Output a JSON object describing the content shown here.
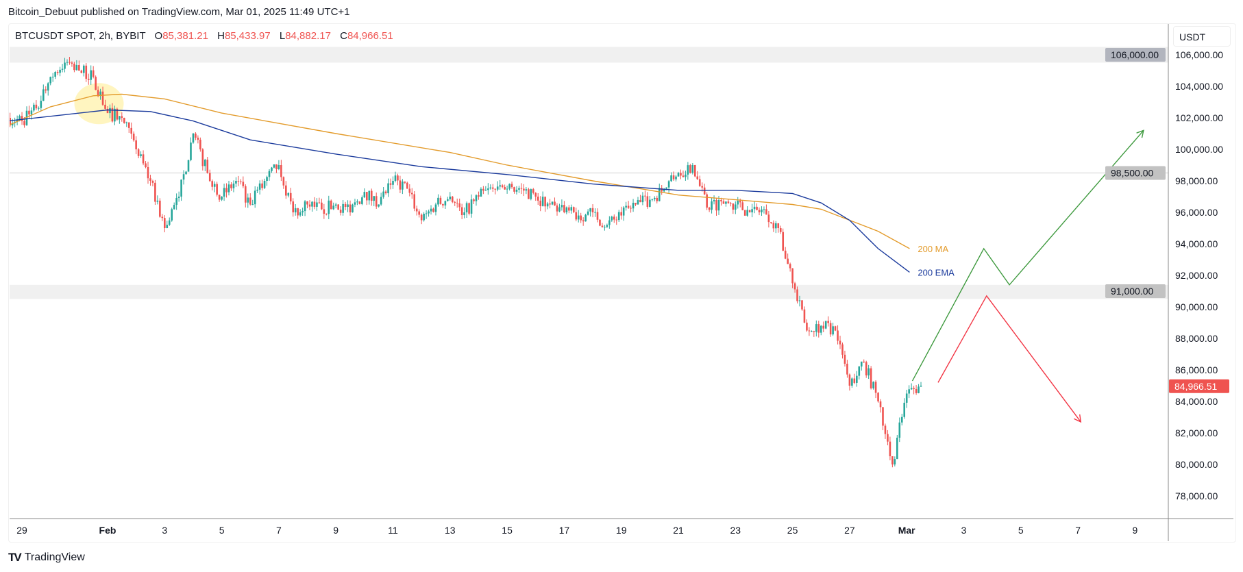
{
  "header": {
    "published": "Bitcoin_Debuut published on TradingView.com, Mar 01, 2025 11:49 UTC+1",
    "symbol": "BTCUSDT SPOT, 2h, BYBIT",
    "o_label": "O",
    "o": "85,381.21",
    "h_label": "H",
    "h": "85,433.97",
    "l_label": "L",
    "l": "84,882.17",
    "c_label": "C",
    "c": "84,966.51",
    "currency": "USDT"
  },
  "footer": {
    "logo_text": "TradingView",
    "logo_mark": "TV"
  },
  "colors": {
    "up": "#26a69a",
    "down": "#ef5350",
    "ma": "#e39b2b",
    "ema": "#1a3a9c",
    "bull_path": "#3f9a3f",
    "bear_path": "#f23645",
    "highlight": "#fff3b0",
    "zone": "#f0f0f0"
  },
  "chart_data": {
    "type": "candlestick",
    "title": "BTCUSDT SPOT, 2h, BYBIT",
    "time_unit": "days offset from Feb 1 2025",
    "ylim": [
      76500,
      107500
    ],
    "xlim": [
      -3.45,
      37.2
    ],
    "y_ticks": [
      78000,
      80000,
      82000,
      84000,
      86000,
      88000,
      90000,
      92000,
      94000,
      96000,
      98000,
      100000,
      102000,
      104000,
      106000
    ],
    "y_tick_labels": [
      "78,000.00",
      "80,000.00",
      "82,000.00",
      "84,000.00",
      "86,000.00",
      "88,000.00",
      "90,000.00",
      "92,000.00",
      "94,000.00",
      "96,000.00",
      "98,000.00",
      "100,000.00",
      "102,000.00",
      "104,000.00",
      "106,000.00"
    ],
    "x_ticks": [
      -3,
      0,
      2,
      4,
      6,
      8,
      10,
      12,
      14,
      16,
      18,
      20,
      22,
      24,
      26,
      28,
      30,
      32,
      34,
      36
    ],
    "x_tick_labels": [
      "29",
      "Feb",
      "3",
      "5",
      "7",
      "9",
      "11",
      "13",
      "15",
      "17",
      "19",
      "21",
      "23",
      "25",
      "27",
      "Mar",
      "3",
      "5",
      "7",
      "9"
    ],
    "close_12h_start": -3.5,
    "close_12h": [
      102000,
      101800,
      102600,
      104600,
      105500,
      105000,
      104600,
      102300,
      102000,
      100000,
      98000,
      95000,
      97000,
      101000,
      98500,
      97000,
      98000,
      96500,
      98000,
      99000,
      96000,
      96500,
      96200,
      96500,
      96000,
      97300,
      96500,
      98000,
      97500,
      95500,
      96500,
      97000,
      96000,
      97000,
      97500,
      97500,
      97500,
      97000,
      96500,
      96000,
      95800,
      96000,
      95200,
      95800,
      96500,
      96800,
      97500,
      98500,
      99000,
      96300,
      96700,
      96500,
      96000,
      96200,
      95000,
      91500,
      88500,
      88800,
      88500,
      85000,
      86500,
      84000,
      80000,
      84500,
      85000
    ],
    "last_price": 84966.51,
    "last_price_label": "84,966.51",
    "series": [
      {
        "name": "200 MA",
        "points": [
          [
            -3.5,
            101500
          ],
          [
            -2,
            102700
          ],
          [
            -0.5,
            103400
          ],
          [
            0.5,
            103500
          ],
          [
            2,
            103200
          ],
          [
            4,
            102300
          ],
          [
            8,
            101000
          ],
          [
            12,
            99800
          ],
          [
            14,
            99000
          ],
          [
            17,
            98000
          ],
          [
            20,
            97100
          ],
          [
            22,
            96800
          ],
          [
            24,
            96500
          ],
          [
            25,
            96200
          ],
          [
            26,
            95500
          ],
          [
            27,
            94800
          ],
          [
            28.1,
            93700
          ]
        ]
      },
      {
        "name": "200 EMA",
        "points": [
          [
            -3.5,
            101800
          ],
          [
            -1.5,
            102200
          ],
          [
            0,
            102500
          ],
          [
            1.5,
            102400
          ],
          [
            3,
            101800
          ],
          [
            5,
            100600
          ],
          [
            8,
            99700
          ],
          [
            11,
            98900
          ],
          [
            14,
            98400
          ],
          [
            17,
            97800
          ],
          [
            20,
            97400
          ],
          [
            22,
            97400
          ],
          [
            24,
            97200
          ],
          [
            25,
            96600
          ],
          [
            26,
            95500
          ],
          [
            27,
            93700
          ],
          [
            28.1,
            92200
          ]
        ]
      }
    ],
    "series_labels": [
      "200 MA",
      "200 EMA"
    ],
    "zones": [
      {
        "from": 105500,
        "to": 106500,
        "label": "106,000.00"
      },
      {
        "from": 90500,
        "to": 91400,
        "label": "91,000.00"
      }
    ],
    "hline": {
      "value": 98500,
      "label": "98,500.00"
    },
    "projection_bull": [
      [
        28.2,
        85300
      ],
      [
        30.7,
        93700
      ],
      [
        31.6,
        91400
      ],
      [
        36.3,
        101200
      ]
    ],
    "projection_bear": [
      [
        29.1,
        85200
      ],
      [
        30.8,
        90700
      ],
      [
        34.1,
        82700
      ]
    ],
    "highlight": {
      "t": -0.3,
      "price": 102900
    }
  }
}
